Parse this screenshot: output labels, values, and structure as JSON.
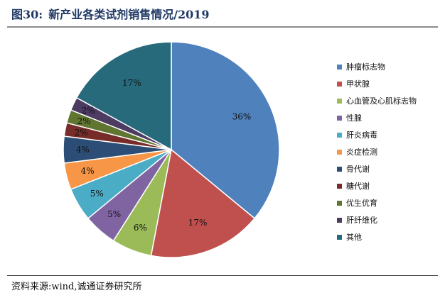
{
  "figure": {
    "number": "图30:",
    "title": "新产业各类试剂销售情况/2019",
    "source": "资料来源:wind,诚通证券研究所"
  },
  "chart_data": {
    "type": "pie",
    "title": "新产业各类试剂销售情况/2019",
    "categories": [
      "肿瘤标志物",
      "甲状腺",
      "心血管及心肌标志物",
      "性腺",
      "肝炎病毒",
      "炎症检测",
      "骨代谢",
      "糖代谢",
      "优生优育",
      "肝纤维化",
      "其他"
    ],
    "values": [
      36,
      17,
      6,
      5,
      5,
      4,
      4,
      2,
      2,
      2,
      17
    ],
    "labels": [
      "36%",
      "17%",
      "6%",
      "5%",
      "5%",
      "4%",
      "4%",
      "2%",
      "2%",
      "2%",
      "17%"
    ],
    "colors": [
      "#4f81bd",
      "#c0504d",
      "#9bbb59",
      "#8064a2",
      "#4bacc6",
      "#f79646",
      "#2c4d75",
      "#772c2a",
      "#5f7530",
      "#4d3b62",
      "#276a7c"
    ],
    "legend_position": "right",
    "start": "top",
    "direction": "clockwise"
  }
}
